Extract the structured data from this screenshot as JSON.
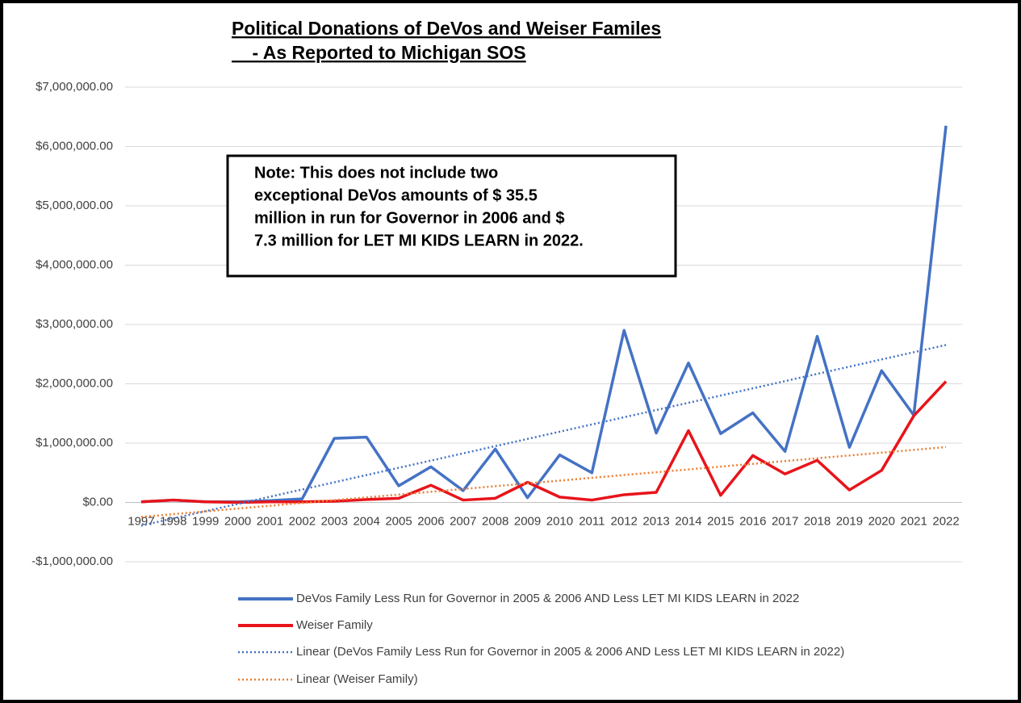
{
  "chart_data": {
    "type": "line",
    "title": [
      "Political Donations of DeVos and Weiser Familes",
      "    - As Reported to Michigan SOS"
    ],
    "note": [
      "Note: This does not include two",
      "exceptional DeVos amounts of $ 35.5",
      "million in run for Governor in 2006 and $",
      "7.3 million for LET MI KIDS LEARN in 2022."
    ],
    "categories": [
      "1997",
      "1998",
      "1999",
      "2000",
      "2001",
      "2002",
      "2003",
      "2004",
      "2005",
      "2006",
      "2007",
      "2008",
      "2009",
      "2010",
      "2011",
      "2012",
      "2013",
      "2014",
      "2015",
      "2016",
      "2017",
      "2018",
      "2019",
      "2020",
      "2021",
      "2022"
    ],
    "series": [
      {
        "name": "DeVos Family Less Run for Governor in 2005 & 2006 AND Less LET MI KIDS LEARN in 2022",
        "color": "#4472c4",
        "values": [
          10000,
          40000,
          10000,
          10000,
          30000,
          60000,
          1080000,
          1100000,
          280000,
          600000,
          200000,
          900000,
          80000,
          800000,
          500000,
          2900000,
          1170000,
          2350000,
          1160000,
          1510000,
          860000,
          2800000,
          930000,
          2220000,
          1470000,
          6350000
        ]
      },
      {
        "name": "Weiser Family",
        "color": "#e8141b",
        "values": [
          10000,
          40000,
          10000,
          0,
          10000,
          10000,
          20000,
          50000,
          70000,
          290000,
          40000,
          70000,
          340000,
          90000,
          40000,
          130000,
          170000,
          1210000,
          120000,
          790000,
          480000,
          710000,
          210000,
          540000,
          1460000,
          2040000
        ]
      }
    ],
    "trendlines": [
      {
        "name": "Linear (DeVos Family Less Run for Governor in 2005 & 2006 AND Less LET MI KIDS LEARN in 2022)",
        "color": "#4472c4",
        "of": 0,
        "fit": "linear"
      },
      {
        "name": "Linear (Weiser Family)",
        "color": "#ed7d31",
        "of": 1,
        "fit": "linear"
      }
    ],
    "ylim": [
      -1000000,
      7000000
    ],
    "yticks": [
      {
        "value": -1000000,
        "label": "-$1,000,000.00"
      },
      {
        "value": 0,
        "label": "$0.00"
      },
      {
        "value": 1000000,
        "label": "$1,000,000.00"
      },
      {
        "value": 2000000,
        "label": "$2,000,000.00"
      },
      {
        "value": 3000000,
        "label": "$3,000,000.00"
      },
      {
        "value": 4000000,
        "label": "$4,000,000.00"
      },
      {
        "value": 5000000,
        "label": "$5,000,000.00"
      },
      {
        "value": 6000000,
        "label": "$6,000,000.00"
      },
      {
        "value": 7000000,
        "label": "$7,000,000.00"
      }
    ],
    "grid": true,
    "legend": "bottom"
  }
}
